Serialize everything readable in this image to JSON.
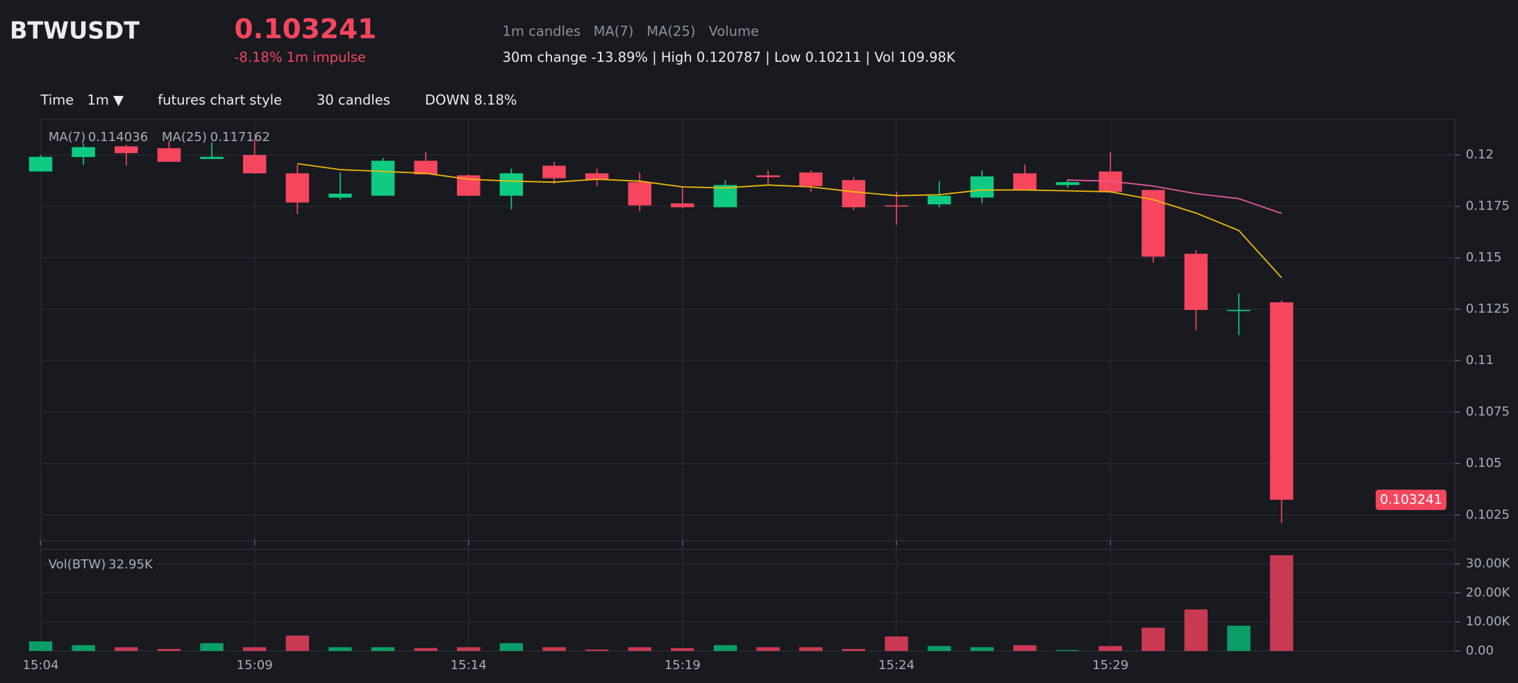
{
  "header": {
    "symbol": "BTWUSDT",
    "price": "0.103241",
    "change": "-8.18% 1m impulse",
    "legend": [
      "1m candles",
      "MA(7)",
      "MA(25)",
      "Volume"
    ],
    "stats": "30m change -13.89% | High 0.120787 | Low 0.10211 | Vol 109.98K"
  },
  "toolbar": {
    "time_label": "Time",
    "interval": "1m ▼",
    "style": "futures chart style",
    "count": "30 candles",
    "direction": "DOWN 8.18%"
  },
  "chart_data": [
    {
      "type": "candlestick",
      "categories": [
        "15:04",
        null,
        null,
        null,
        null,
        "15:09",
        null,
        null,
        null,
        null,
        "15:14",
        null,
        null,
        null,
        null,
        "15:19",
        null,
        null,
        null,
        null,
        "15:24",
        null,
        null,
        null,
        null,
        "15:29",
        null,
        null,
        null,
        null
      ],
      "open": [
        0.1192,
        0.1199,
        0.12042,
        0.12033,
        0.11981,
        0.12,
        0.11911,
        0.11793,
        0.11802,
        0.11972,
        0.11901,
        0.11802,
        0.11948,
        0.11911,
        0.11868,
        0.11765,
        0.11746,
        0.11901,
        0.11915,
        0.11878,
        0.11755,
        0.1176,
        0.11793,
        0.11911,
        0.11854,
        0.1192,
        0.1183,
        0.1152,
        0.11243,
        0.11284
      ],
      "high": [
        0.12,
        0.12056,
        0.1205,
        0.1207,
        0.12061,
        0.120787,
        0.11953,
        0.11915,
        0.11986,
        0.12014,
        0.11906,
        0.11934,
        0.11967,
        0.11934,
        0.11915,
        0.11845,
        0.11878,
        0.11925,
        0.11925,
        0.11892,
        0.11821,
        0.11873,
        0.11925,
        0.11953,
        0.11882,
        0.12014,
        0.1183,
        0.11539,
        0.11327,
        0.11294
      ],
      "low": [
        0.1192,
        0.11953,
        0.11948,
        0.11967,
        0.11981,
        0.1191,
        0.11713,
        0.11783,
        0.11802,
        0.11906,
        0.11802,
        0.11736,
        0.11859,
        0.11849,
        0.11727,
        0.11741,
        0.11746,
        0.11854,
        0.11821,
        0.11732,
        0.11661,
        0.11746,
        0.11765,
        0.1183,
        0.1184,
        0.11821,
        0.11477,
        0.11148,
        0.11124,
        0.10211
      ],
      "close": [
        0.11991,
        0.12038,
        0.12009,
        0.11967,
        0.11991,
        0.11911,
        0.11769,
        0.11812,
        0.11972,
        0.11906,
        0.11802,
        0.11911,
        0.11887,
        0.11878,
        0.11755,
        0.11746,
        0.11854,
        0.11892,
        0.11849,
        0.11746,
        0.1175,
        0.11802,
        0.11896,
        0.1183,
        0.11868,
        0.11821,
        0.11506,
        0.11247,
        0.11247,
        0.103241
      ],
      "up_color": "#0ecb81",
      "down_color": "#f6465d",
      "overlays": [
        {
          "name": "MA(7)",
          "color": "#f0b90b",
          "values": [
            null,
            null,
            null,
            null,
            null,
            null,
            0.11958,
            0.11929,
            0.1192,
            0.11911,
            0.11882,
            0.11873,
            0.11868,
            0.11882,
            0.11873,
            0.11845,
            0.1184,
            0.11854,
            0.11845,
            0.11821,
            0.11802,
            0.11807,
            0.1183,
            0.1183,
            0.11826,
            0.11821,
            0.11783,
            0.11718,
            0.11633,
            0.114036
          ]
        },
        {
          "name": "MA(25)",
          "color": "#e8579a",
          "values": [
            null,
            null,
            null,
            null,
            null,
            null,
            null,
            null,
            null,
            null,
            null,
            null,
            null,
            null,
            null,
            null,
            null,
            null,
            null,
            null,
            null,
            null,
            null,
            null,
            0.11878,
            0.11873,
            0.11849,
            0.11812,
            0.11788,
            0.117162
          ]
        }
      ],
      "ylim": [
        0.10126,
        0.12174
      ],
      "yticks": [
        0.1025,
        0.105,
        0.1075,
        0.11,
        0.1125,
        0.115,
        0.1175,
        0.12
      ],
      "grid": true
    },
    {
      "type": "bar",
      "title": "Vol(BTW)",
      "latest_label": "32.95K",
      "values": [
        3300,
        2000,
        1300,
        700,
        2700,
        1300,
        5300,
        1300,
        1300,
        1000,
        1300,
        2700,
        1300,
        500,
        1300,
        1000,
        2000,
        1300,
        1300,
        700,
        5000,
        1700,
        1300,
        2000,
        300,
        1700,
        8000,
        14300,
        8700,
        32950
      ],
      "up_color": "#0b9e68",
      "down_color": "#c93a52",
      "ylim": [
        0,
        35000
      ],
      "yticks": [
        {
          "value": 0,
          "label": "0.00"
        },
        {
          "value": 10000,
          "label": "10.00K"
        },
        {
          "value": 20000,
          "label": "20.00K"
        },
        {
          "value": 30000,
          "label": "30.00K"
        }
      ],
      "grid": true
    }
  ]
}
